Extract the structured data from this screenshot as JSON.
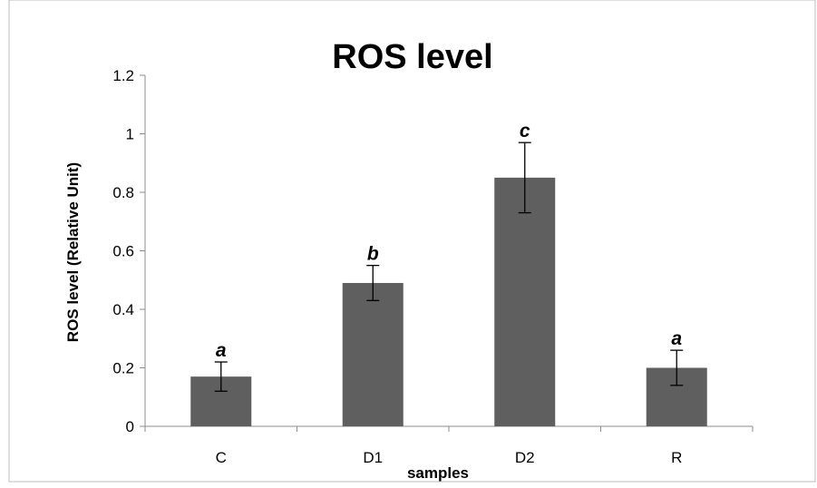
{
  "chart_data": {
    "type": "bar",
    "title": "ROS level",
    "xlabel": "samples",
    "ylabel": "ROS level (Relative Unit)",
    "categories": [
      "C",
      "D1",
      "D2",
      "R"
    ],
    "values": [
      0.17,
      0.49,
      0.85,
      0.2
    ],
    "error": [
      0.05,
      0.06,
      0.12,
      0.06
    ],
    "significance_labels": [
      "a",
      "b",
      "c",
      "a"
    ],
    "ylim": [
      0,
      1.2
    ],
    "yticks": [
      "0",
      "0.2",
      "0.4",
      "0.6",
      "0.8",
      "1",
      "1.2"
    ],
    "grid": false,
    "legend": "none",
    "bar_color": "#5f5f5f"
  }
}
